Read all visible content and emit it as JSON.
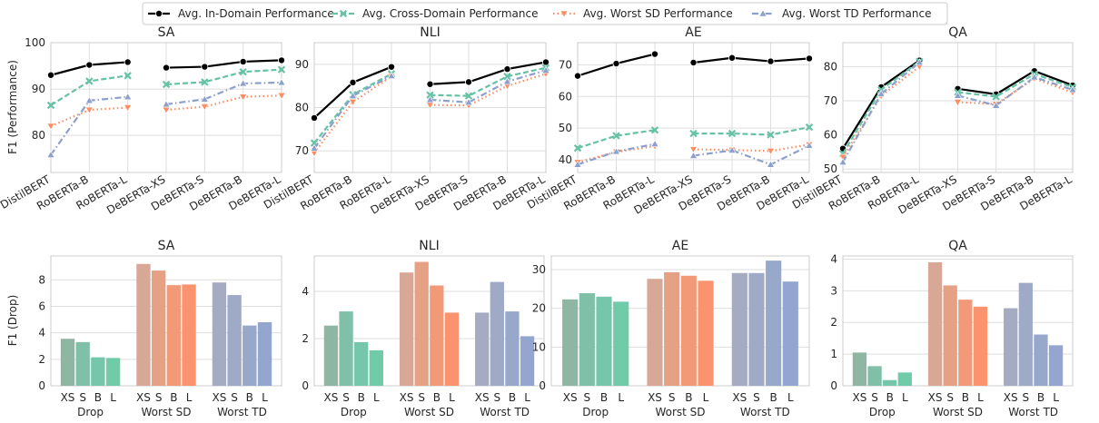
{
  "legend": [
    {
      "label": "Avg. In-Domain Performance",
      "color": "#000000",
      "marker": "o",
      "dash": "solid"
    },
    {
      "label": "Avg. Cross-Domain Performance",
      "color": "#66c2a5",
      "marker": "x",
      "dash": "dashed"
    },
    {
      "label": "Avg. Worst SD Performance",
      "color": "#fc8d62",
      "marker": "v",
      "dash": "dotted"
    },
    {
      "label": "Avg. Worst TD Performance",
      "color": "#8da0cb",
      "marker": "^",
      "dash": "dashdot"
    }
  ],
  "top_ylabel": "F1 (Performance)",
  "bottom_ylabel": "F1 (Drop)",
  "bar_colors": {
    "Drop": [
      "#8fb5a3",
      "#80bfa8",
      "#75c6aa",
      "#6fcba8"
    ],
    "Worst SD": [
      "#d8a896",
      "#e6a084",
      "#f29a78",
      "#fb946e"
    ],
    "Worst TD": [
      "#a5abc0",
      "#9eaac6",
      "#98a8cb",
      "#94a6cf"
    ]
  },
  "chart_data": [
    {
      "type": "line",
      "title": "SA",
      "categories": [
        "DistilBERT",
        "RoBERTa-B",
        "RoBERTa-L",
        "DeBERTa-XS",
        "DeBERTa-S",
        "DeBERTa-B",
        "DeBERTa-L"
      ],
      "ylim": [
        72,
        100
      ],
      "yticks": [
        80,
        90,
        100
      ],
      "series": [
        {
          "name": "Avg. In-Domain Performance",
          "values": [
            93.0,
            95.2,
            95.8,
            94.6,
            94.8,
            95.9,
            96.2
          ]
        },
        {
          "name": "Avg. Cross-Domain Performance",
          "values": [
            86.5,
            91.7,
            92.9,
            91.0,
            91.5,
            93.7,
            94.2
          ]
        },
        {
          "name": "Avg. Worst SD Performance",
          "values": [
            82.0,
            85.5,
            86.0,
            85.5,
            86.2,
            88.3,
            88.6
          ]
        },
        {
          "name": "Avg. Worst TD Performance",
          "values": [
            75.8,
            87.5,
            88.3,
            86.7,
            87.8,
            91.2,
            91.4
          ]
        }
      ]
    },
    {
      "type": "line",
      "title": "NLI",
      "categories": [
        "DistilBERT",
        "RoBERTa-B",
        "RoBERTa-L",
        "DeBERTa-XS",
        "DeBERTa-S",
        "DeBERTa-B",
        "DeBERTa-L"
      ],
      "ylim": [
        65,
        95
      ],
      "yticks": [
        70,
        80,
        90
      ],
      "series": [
        {
          "name": "Avg. In-Domain Performance",
          "values": [
            77.6,
            85.8,
            89.4,
            85.4,
            85.9,
            88.9,
            90.5
          ]
        },
        {
          "name": "Avg. Cross-Domain Performance",
          "values": [
            71.8,
            83.0,
            87.8,
            82.9,
            82.7,
            87.2,
            89.2
          ]
        },
        {
          "name": "Avg. Worst SD Performance",
          "values": [
            69.5,
            81.3,
            87.2,
            80.6,
            80.5,
            85.0,
            87.8
          ]
        },
        {
          "name": "Avg. Worst TD Performance",
          "values": [
            70.6,
            82.7,
            87.3,
            81.8,
            81.2,
            86.0,
            88.6
          ]
        }
      ]
    },
    {
      "type": "line",
      "title": "AE",
      "categories": [
        "DistilBERT",
        "RoBERTa-B",
        "RoBERTa-L",
        "DeBERTa-XS",
        "DeBERTa-S",
        "DeBERTa-B",
        "DeBERTa-L"
      ],
      "ylim": [
        36,
        77
      ],
      "yticks": [
        40,
        50,
        60,
        70
      ],
      "series": [
        {
          "name": "Avg. In-Domain Performance",
          "values": [
            66.5,
            70.4,
            73.4,
            70.7,
            72.2,
            71.1,
            72.0
          ]
        },
        {
          "name": "Avg. Cross-Domain Performance",
          "values": [
            43.7,
            47.6,
            49.4,
            48.3,
            48.3,
            47.9,
            50.3
          ]
        },
        {
          "name": "Avg. Worst SD Performance",
          "values": [
            39.2,
            42.5,
            44.3,
            43.3,
            43.1,
            42.8,
            44.8
          ]
        },
        {
          "name": "Avg. Worst TD Performance",
          "values": [
            38.5,
            42.6,
            45.0,
            41.3,
            43.0,
            38.5,
            44.5
          ]
        }
      ]
    },
    {
      "type": "line",
      "title": "QA",
      "categories": [
        "DistilBERT",
        "RoBERTa-B",
        "RoBERTa-L",
        "DeBERTa-XS",
        "DeBERTa-S",
        "DeBERTa-B",
        "DeBERTa-L"
      ],
      "ylim": [
        49,
        87
      ],
      "yticks": [
        50,
        60,
        70,
        80
      ],
      "series": [
        {
          "name": "Avg. In-Domain Performance",
          "values": [
            56.0,
            74.0,
            81.8,
            73.5,
            71.9,
            78.7,
            74.5
          ]
        },
        {
          "name": "Avg. Cross-Domain Performance",
          "values": [
            54.5,
            73.2,
            81.5,
            72.5,
            71.2,
            77.8,
            74.0
          ]
        },
        {
          "name": "Avg. Worst SD Performance",
          "values": [
            53.5,
            71.4,
            80.0,
            69.6,
            69.0,
            76.5,
            72.4
          ]
        },
        {
          "name": "Avg. Worst TD Performance",
          "values": [
            52.0,
            72.0,
            81.2,
            71.5,
            68.6,
            76.9,
            73.2
          ]
        }
      ]
    },
    {
      "type": "bar",
      "title": "SA",
      "groups": [
        "Drop",
        "Worst SD",
        "Worst TD"
      ],
      "sizes": [
        "XS",
        "S",
        "B",
        "L"
      ],
      "ylim": [
        0,
        9.8
      ],
      "yticks": [
        0,
        2,
        4,
        6,
        8
      ],
      "values": [
        [
          3.55,
          3.3,
          2.15,
          2.1
        ],
        [
          9.2,
          8.7,
          7.6,
          7.65
        ],
        [
          7.8,
          6.85,
          4.55,
          4.8
        ]
      ]
    },
    {
      "type": "bar",
      "title": "NLI",
      "groups": [
        "Drop",
        "Worst SD",
        "Worst TD"
      ],
      "sizes": [
        "XS",
        "S",
        "B",
        "L"
      ],
      "ylim": [
        0,
        5.5
      ],
      "yticks": [
        0,
        2,
        4
      ],
      "values": [
        [
          2.55,
          3.15,
          1.85,
          1.5
        ],
        [
          4.8,
          5.25,
          4.25,
          3.1
        ],
        [
          3.1,
          4.4,
          3.15,
          2.1
        ]
      ]
    },
    {
      "type": "bar",
      "title": "AE",
      "groups": [
        "Drop",
        "Worst SD",
        "Worst TD"
      ],
      "sizes": [
        "XS",
        "S",
        "B",
        "L"
      ],
      "ylim": [
        0,
        33.5
      ],
      "yticks": [
        0,
        10,
        20,
        30
      ],
      "values": [
        [
          22.3,
          23.9,
          23.0,
          21.7
        ],
        [
          27.6,
          29.3,
          28.4,
          27.1
        ],
        [
          29.1,
          29.1,
          32.3,
          26.9
        ]
      ]
    },
    {
      "type": "bar",
      "title": "QA",
      "groups": [
        "Drop",
        "Worst SD",
        "Worst TD"
      ],
      "sizes": [
        "XS",
        "S",
        "B",
        "L"
      ],
      "ylim": [
        0,
        4.1
      ],
      "yticks": [
        0,
        1,
        2,
        3,
        4
      ],
      "values": [
        [
          1.05,
          0.62,
          0.18,
          0.42
        ],
        [
          3.9,
          3.17,
          2.72,
          2.5
        ],
        [
          2.45,
          3.25,
          1.62,
          1.28
        ]
      ]
    }
  ]
}
